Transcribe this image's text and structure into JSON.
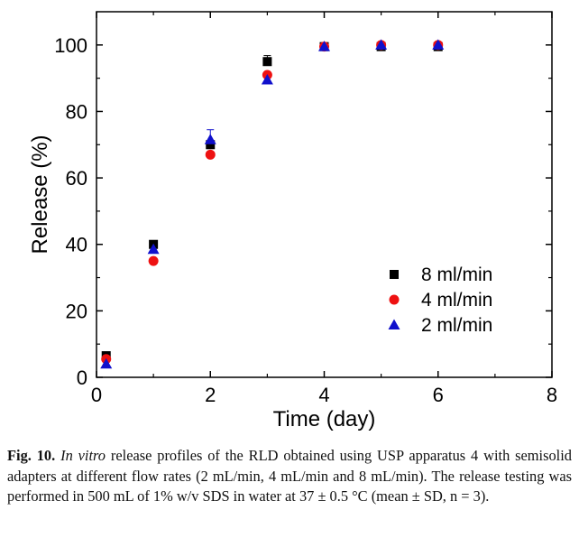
{
  "chart_data": {
    "type": "scatter",
    "xlabel": "Time (day)",
    "ylabel": "Release (%)",
    "xlim": [
      0,
      8
    ],
    "ylim": [
      0,
      110
    ],
    "xticks": [
      0,
      2,
      4,
      6,
      8
    ],
    "yticks": [
      0,
      20,
      40,
      60,
      80,
      100
    ],
    "legend_position": "lower-right",
    "series": [
      {
        "name": "8 ml/min",
        "marker": "square",
        "color": "#000000",
        "x": [
          0.17,
          1,
          2,
          3,
          4,
          5,
          6
        ],
        "y": [
          6.5,
          40,
          70,
          95,
          99.5,
          99.5,
          99.5
        ],
        "err": [
          0,
          0,
          0,
          1.8,
          0,
          0,
          0
        ]
      },
      {
        "name": "4 ml/min",
        "marker": "circle",
        "color": "#ee1111",
        "x": [
          0.17,
          1,
          2,
          3,
          4,
          5,
          6
        ],
        "y": [
          5.5,
          35,
          67,
          91,
          99.5,
          100,
          100
        ],
        "err": [
          0,
          0,
          0,
          0,
          0,
          0,
          0
        ]
      },
      {
        "name": "2 ml/min",
        "marker": "triangle",
        "color": "#1010cc",
        "x": [
          0.17,
          1,
          2,
          3,
          4,
          5,
          6
        ],
        "y": [
          4,
          38.5,
          71.5,
          89.5,
          99.5,
          100,
          100
        ],
        "err": [
          0,
          0,
          3,
          0,
          0,
          0,
          0
        ]
      }
    ]
  },
  "caption": {
    "label": "Fig. 10.",
    "italic": "In vitro",
    "text": "release profiles of the RLD obtained using USP apparatus 4 with semisolid adapters at different flow rates (2 mL/min, 4 mL/min and 8 mL/min). The release testing was performed in 500 mL of 1% w/v SDS in water at 37 ± 0.5 °C (mean ± SD, n = 3)."
  }
}
